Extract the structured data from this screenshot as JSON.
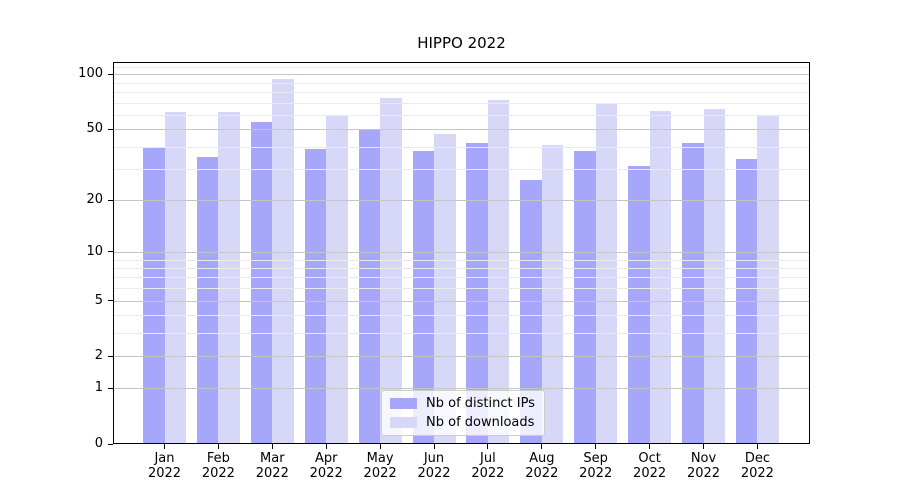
{
  "chart_data": {
    "type": "bar",
    "title": "HIPPO 2022",
    "categories": [
      "Jan",
      "Feb",
      "Mar",
      "Apr",
      "May",
      "Jun",
      "Jul",
      "Aug",
      "Sep",
      "Oct",
      "Nov",
      "Dec"
    ],
    "category_year": "2022",
    "series": [
      {
        "name": "Nb of distinct IPs",
        "color": "#a6a6fa",
        "values": [
          40,
          35,
          55,
          39,
          50,
          38,
          42,
          26,
          38,
          31,
          42,
          34
        ]
      },
      {
        "name": "Nb of downloads",
        "color": "#d7d7f8",
        "values": [
          62,
          62,
          95,
          59,
          74,
          47,
          72,
          41,
          70,
          63,
          65,
          59
        ]
      }
    ],
    "xlabel": "",
    "ylabel": "",
    "yscale": "log1p",
    "ylim": [
      0,
      117
    ],
    "yticks": [
      0,
      1,
      2,
      5,
      10,
      20,
      50,
      100
    ],
    "yticks_minor": [
      3,
      4,
      6,
      7,
      8,
      9,
      30,
      40,
      60,
      70,
      80,
      90,
      110
    ],
    "grid": "both",
    "legend_position": "lower center",
    "axis_color": "#000000",
    "grid_major_color": "#c6c6c6",
    "grid_minor_color": "#eaeaea",
    "background_color": "#ffffff"
  }
}
